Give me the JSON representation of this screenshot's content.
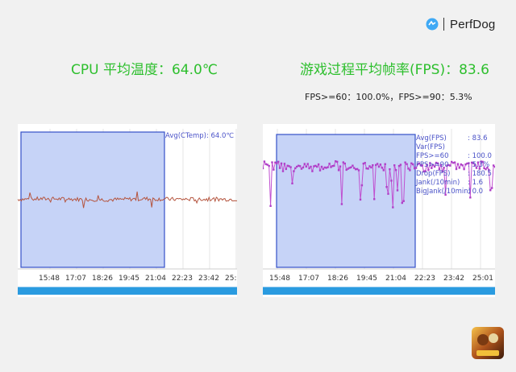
{
  "brand": {
    "name": "PerfDog",
    "logo": "perfdog-logo"
  },
  "cpu": {
    "headline": "CPU 平均温度：64.0℃",
    "chart": {
      "annotation": "Avg(CTemp): 64.0℃"
    }
  },
  "fps": {
    "headline": "游戏过程平均帧率(FPS)：83.6",
    "subline": "FPS>=60：100.0%，FPS>=90：5.3%",
    "stats": [
      {
        "label": "Avg(FPS)",
        "value": ": 83.6"
      },
      {
        "label": "Var(FPS)",
        "value": ""
      },
      {
        "label": "FPS>=60",
        "value": ": 100.0"
      },
      {
        "label": "FPS>=90",
        "value": ": 5.3%"
      },
      {
        "label": "Drop(FPS)",
        "value": ": 180.5"
      },
      {
        "label": "Jank(/10min)",
        "value": ": 1.6"
      },
      {
        "label": "BigJank(/10min)",
        "value": ": 0.0"
      }
    ]
  },
  "cpu_ticks": [
    "15:48",
    "17:07",
    "18:26",
    "19:45",
    "21:04",
    "22:23",
    "23:42",
    "25:01"
  ],
  "fps_ticks": [
    "15:48",
    "17:07",
    "18:26",
    "19:45",
    "21:04",
    "22:23",
    "23:42",
    "25:01"
  ],
  "colors": {
    "headline": "#2dbf2d",
    "cpu_line": "#b5553f",
    "fps_line": "#c050d0",
    "selection": "#c6d3f7",
    "selection_border": "#3550c8",
    "scrollbar": "#2a9be0"
  },
  "chart_data": [
    {
      "type": "line",
      "title": "",
      "xlabel": "",
      "ylabel": "",
      "x": [
        "15:48",
        "17:07",
        "18:26",
        "19:45",
        "21:04",
        "22:23",
        "23:42",
        "25:01"
      ],
      "series": [
        {
          "name": "CTemp",
          "values": [
            64.0,
            64.1,
            64.0,
            63.9,
            64.1,
            64.0,
            64.0,
            64.0
          ]
        }
      ]
    },
    {
      "type": "line",
      "title": "",
      "xlabel": "",
      "ylabel": "",
      "x": [
        "15:48",
        "17:07",
        "18:26",
        "19:45",
        "21:04",
        "22:23",
        "23:42",
        "25:01"
      ],
      "series": [
        {
          "name": "FPS",
          "values": [
            85,
            82,
            84,
            83,
            84,
            83,
            84,
            84
          ]
        }
      ]
    }
  ]
}
